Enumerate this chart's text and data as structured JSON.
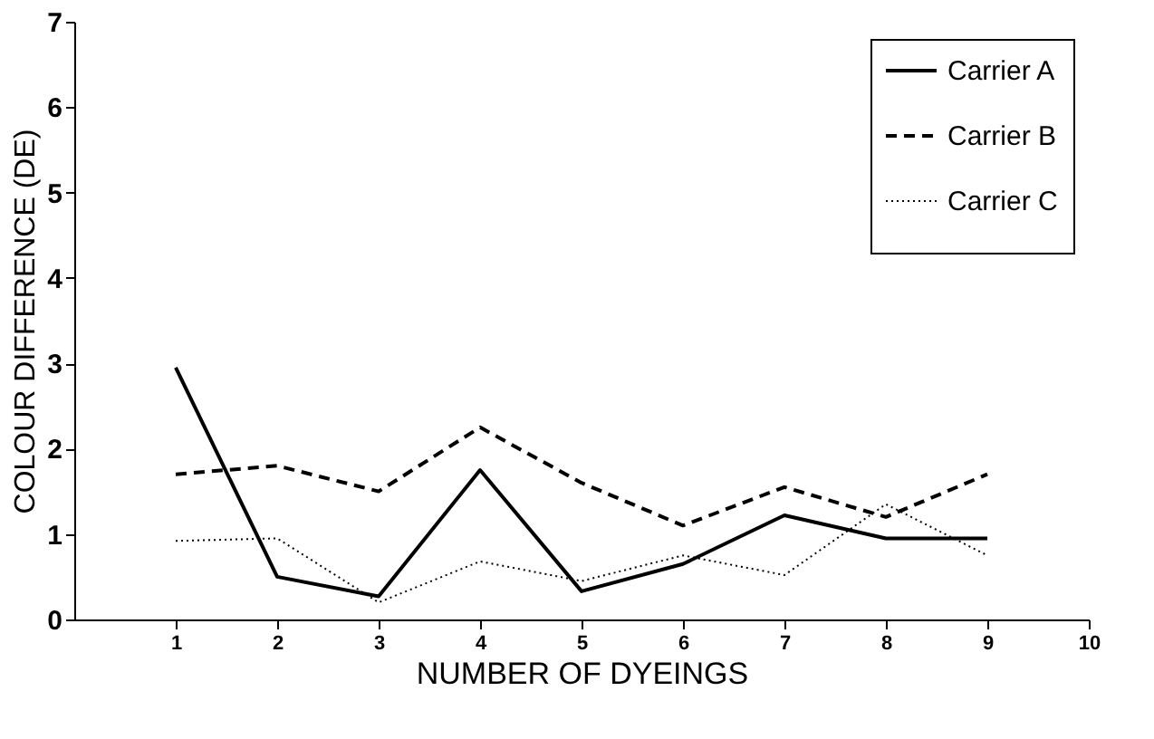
{
  "chart_data": {
    "type": "line",
    "xlabel": "NUMBER OF DYEINGS",
    "ylabel": "COLOUR DIFFERENCE (DE)",
    "x": [
      1,
      2,
      3,
      4,
      5,
      6,
      7,
      8,
      9
    ],
    "series": [
      {
        "name": "Carrier A",
        "color": "#000000",
        "line_style": "solid",
        "values": [
          2.95,
          0.5,
          0.27,
          1.75,
          0.33,
          0.65,
          1.22,
          0.95,
          0.95
        ]
      },
      {
        "name": "Carrier B",
        "color": "#000000",
        "line_style": "dashed",
        "values": [
          1.7,
          1.8,
          1.5,
          2.25,
          1.6,
          1.1,
          1.55,
          1.2,
          1.7
        ]
      },
      {
        "name": "Carrier C",
        "color": "#000000",
        "line_style": "dotted",
        "values": [
          0.92,
          0.95,
          0.2,
          0.68,
          0.45,
          0.75,
          0.52,
          1.35,
          0.75
        ]
      }
    ],
    "xlim": [
      0,
      10
    ],
    "xticks": [
      1,
      2,
      3,
      4,
      5,
      6,
      7,
      8,
      9,
      10
    ],
    "ylim": [
      0,
      7
    ],
    "yticks": [
      0,
      1,
      2,
      3,
      4,
      5,
      6,
      7
    ],
    "grid": false,
    "legend": "top right",
    "marker": "none"
  }
}
